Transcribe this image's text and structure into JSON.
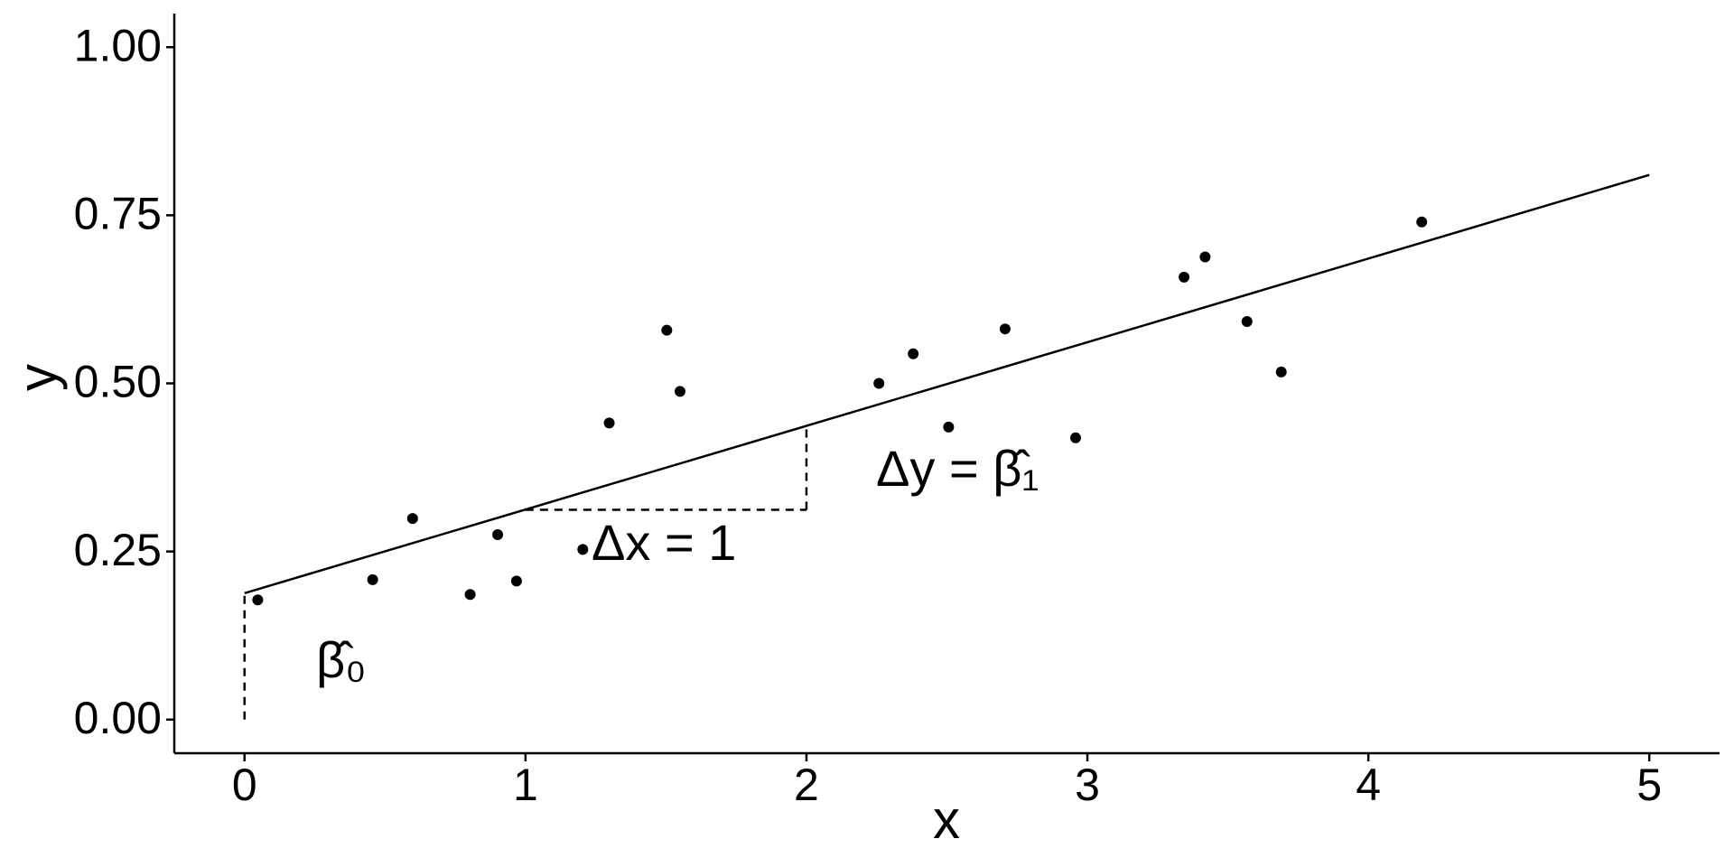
{
  "chart_data": {
    "type": "scatter",
    "x_label": "x",
    "y_label": "y",
    "x": [
      0.047,
      0.456,
      0.598,
      0.803,
      0.901,
      0.968,
      1.204,
      1.298,
      1.503,
      1.55,
      2.258,
      2.38,
      2.506,
      2.707,
      2.958,
      3.344,
      3.419,
      3.568,
      3.69,
      4.19
    ],
    "values": [
      0.178,
      0.208,
      0.299,
      0.186,
      0.275,
      0.206,
      0.253,
      0.441,
      0.579,
      0.488,
      0.5,
      0.544,
      0.435,
      0.581,
      0.419,
      0.658,
      0.688,
      0.592,
      0.517,
      0.74
    ],
    "color": "#000000",
    "fit_line": {
      "x": [
        0,
        5
      ],
      "y": [
        0.188,
        0.81
      ]
    },
    "guides": [
      {
        "x": [
          0,
          0
        ],
        "y": [
          0,
          0.188
        ]
      },
      {
        "x": [
          1,
          2
        ],
        "y": [
          0.312,
          0.312
        ]
      },
      {
        "x": [
          2,
          2
        ],
        "y": [
          0.312,
          0.437
        ]
      }
    ],
    "annotations": [
      "β̂₀",
      "Δx = 1",
      "Δy = β̂₁"
    ],
    "xlim": [
      -0.25,
      5.25
    ],
    "ylim": [
      -0.05,
      1.05
    ],
    "xticks": [
      0,
      1,
      2,
      3,
      4,
      5
    ],
    "yticks": [
      {
        "value": 0,
        "label": "0.00"
      },
      {
        "value": 0.25,
        "label": "0.25"
      },
      {
        "value": 0.5,
        "label": "0.50"
      },
      {
        "value": 0.75,
        "label": "0.75"
      },
      {
        "value": 1,
        "label": "1.00"
      }
    ],
    "grid": false
  }
}
